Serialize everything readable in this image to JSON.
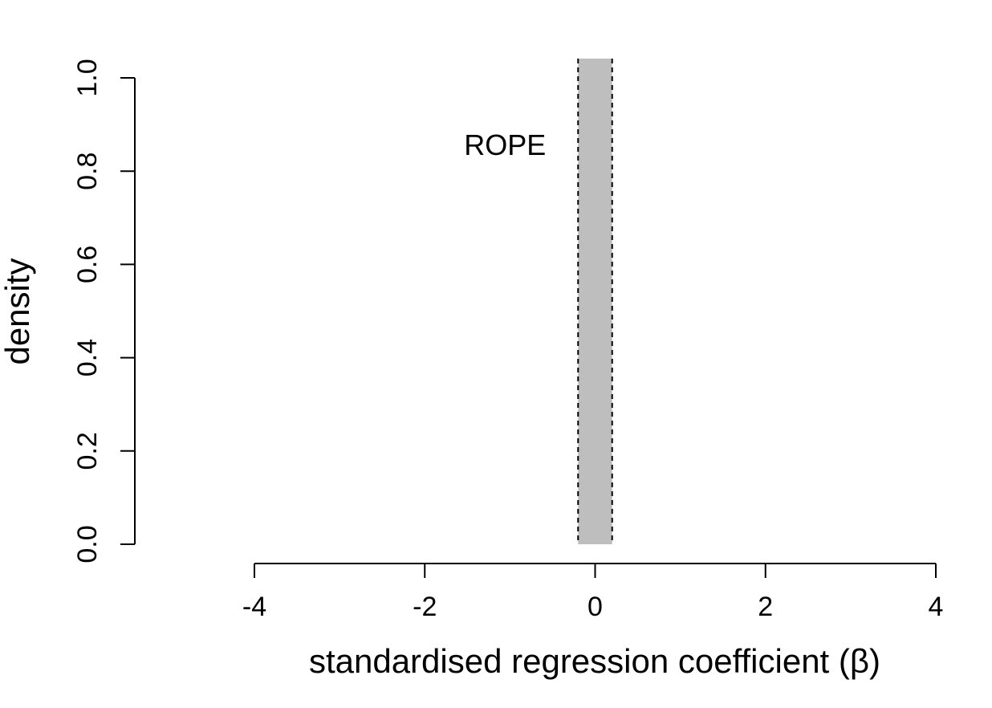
{
  "chart_data": {
    "type": "area",
    "title": "",
    "xlabel": "standardised regression coefficient (β)",
    "ylabel": "density",
    "xlim": [
      -4,
      4
    ],
    "ylim": [
      0,
      1.0
    ],
    "x_ticks": [
      -4,
      -2,
      0,
      2,
      4
    ],
    "x_tick_labels": [
      "-4",
      "-2",
      "0",
      "2",
      "4"
    ],
    "y_ticks": [
      0.0,
      0.2,
      0.4,
      0.6,
      0.8,
      1.0
    ],
    "y_tick_labels": [
      "0.0",
      "0.2",
      "0.4",
      "0.6",
      "0.8",
      "1.0"
    ],
    "rope": {
      "label": "ROPE",
      "lower": -0.2,
      "upper": 0.2,
      "fill_color": "#bebebe",
      "border_color": "#000000",
      "border_style": "dashed"
    },
    "grid": false,
    "series": []
  }
}
